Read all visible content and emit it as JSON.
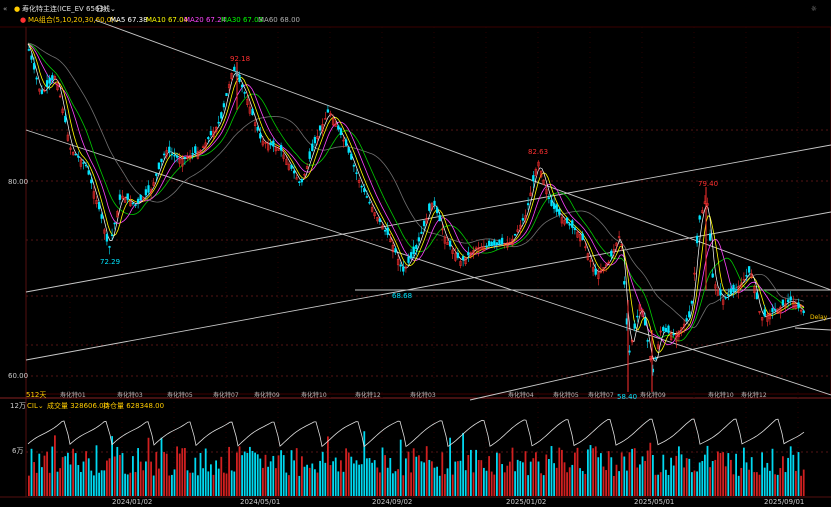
{
  "header": {
    "nav_icon": "double-chevron-left-icon",
    "instrument": "寿化特主连(ICE_EV 6563)",
    "period": "日线",
    "corner_icon": "brightness-icon"
  },
  "ma_bar": {
    "title": "MA组合(5,10,20,30,60,0)",
    "items": [
      {
        "text": "MA5 67.38",
        "color": "#ffffff"
      },
      {
        "text": "MA10 67.04",
        "color": "#ffff00"
      },
      {
        "text": "MA20 67.24",
        "color": "#ff44ff"
      },
      {
        "text": "MA30 67.03",
        "color": "#00ff00"
      },
      {
        "text": "MA60 68.00",
        "color": "#909090"
      }
    ]
  },
  "price_axis": {
    "labels": [
      "80.00",
      "60.00"
    ]
  },
  "annotations": {
    "high_1": "92.18",
    "high_2": "82.63",
    "high_3": "79.40",
    "low_1": "72.29",
    "low_2": "68.68",
    "low_3": "58.40",
    "right_tag": "Delay"
  },
  "contract_labels": {
    "days": "512天",
    "items": [
      "寿化特01",
      "寿化特03",
      "寿化特05",
      "寿化特07",
      "寿化特09",
      "寿化特10",
      "寿化特12",
      "寿化特03",
      "寿化特04",
      "寿化特05",
      "寿化特07",
      "寿化特09",
      "寿化特10",
      "寿化特12"
    ]
  },
  "volume_bar": {
    "axis_top": "12万",
    "axis_mid": "6万",
    "indicator": "CIL",
    "volume_text": "成交量 328606.00",
    "oi_text": "持仓量 628348.00"
  },
  "date_axis": [
    "2024/01/02",
    "2024/05/01",
    "2024/09/02",
    "2025/01/02",
    "2025/05/01",
    "2025/09/01"
  ],
  "colors": {
    "up": "#ff3030",
    "down": "#00e5ff",
    "grid": "#3a0000",
    "line": "#d0d0d0"
  },
  "chart_data": {
    "type": "candlestick",
    "y_axis_ticks": [
      80.0,
      60.0
    ],
    "series": [
      {
        "name": "MA5",
        "last": 67.38
      },
      {
        "name": "MA10",
        "last": 67.04
      },
      {
        "name": "MA20",
        "last": 67.24
      },
      {
        "name": "MA30",
        "last": 67.03
      },
      {
        "name": "MA60",
        "last": 68.0
      }
    ],
    "marked_extremes": [
      {
        "label": "92.18",
        "value": 92.18
      },
      {
        "label": "72.29",
        "value": 72.29
      },
      {
        "label": "68.68",
        "value": 68.68
      },
      {
        "label": "82.63",
        "value": 82.63
      },
      {
        "label": "79.40",
        "value": 79.4
      },
      {
        "label": "58.40",
        "value": 58.4
      }
    ],
    "volume_last": 328606.0,
    "open_interest_last": 628348.0
  }
}
